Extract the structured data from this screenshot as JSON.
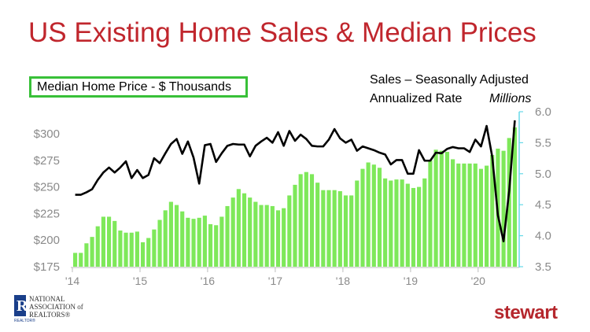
{
  "title": "US Existing Home Sales & Median Prices",
  "legend": {
    "price_label": "Median Home Price - $ Thousands",
    "sales_label_line1": "Sales – Seasonally Adjusted",
    "sales_label_line2": "Annualized Rate",
    "sales_units": "Millions"
  },
  "branding": {
    "nar_line1": "NATIONAL",
    "nar_line2": "ASSOCIATION of",
    "nar_line3": "REALTORS®",
    "nar_small": "REALTOR®",
    "stewart": "stewart"
  },
  "colors": {
    "title": "#c0262d",
    "bars": "#7ee85a",
    "line": "#000000",
    "axis_right": "#66d9e8",
    "legend_border": "#38c038",
    "stewart": "#b5272d"
  },
  "chart_data": {
    "type": "bar+line",
    "x_tick_labels": [
      "'14",
      "'15",
      "'16",
      "'17",
      "'18",
      "'19",
      "'20"
    ],
    "start": "2014-01",
    "end": "2020-07",
    "y_left": {
      "label": "Median Home Price - $ Thousands",
      "range": [
        175,
        310
      ],
      "ticks": [
        175,
        200,
        225,
        250,
        275,
        300
      ],
      "tick_labels": [
        "$175",
        "$200",
        "$225",
        "$250",
        "$275",
        "$300"
      ]
    },
    "y_right": {
      "label": "Sales – Seasonally Adjusted Annualized Rate Millions",
      "range": [
        3.5,
        6.0
      ],
      "ticks": [
        3.5,
        4.0,
        4.5,
        5.0,
        5.5,
        6.0
      ],
      "tick_labels": [
        "3.5",
        "4.0",
        "4.5",
        "5.0",
        "5.5",
        "6.0"
      ]
    },
    "series": [
      {
        "name": "Median Home Price - $ Thousands",
        "type": "bar",
        "axis": "left",
        "values": [
          188,
          188,
          197,
          203,
          213,
          222,
          222,
          218,
          209,
          207,
          207,
          208,
          198,
          202,
          210,
          219,
          228,
          236,
          233,
          227,
          221,
          220,
          221,
          223,
          215,
          214,
          222,
          232,
          240,
          248,
          244,
          240,
          236,
          233,
          233,
          232,
          228,
          230,
          242,
          252,
          262,
          264,
          262,
          254,
          247,
          247,
          247,
          246,
          242,
          242,
          256,
          267,
          273,
          271,
          268,
          258,
          256,
          257,
          257,
          253,
          249,
          250,
          258,
          275,
          285,
          284,
          283,
          276,
          272,
          272,
          272,
          272,
          267,
          270,
          280,
          286,
          284,
          296,
          306
        ]
      },
      {
        "name": "Sales – Seasonally Adjusted Annualized Rate",
        "type": "line",
        "axis": "right",
        "values": [
          4.66,
          4.66,
          4.7,
          4.75,
          4.9,
          5.02,
          5.1,
          5.02,
          5.1,
          5.2,
          4.93,
          5.06,
          4.93,
          4.98,
          5.25,
          5.17,
          5.33,
          5.48,
          5.56,
          5.32,
          5.52,
          5.26,
          4.84,
          5.46,
          5.48,
          5.19,
          5.33,
          5.45,
          5.48,
          5.47,
          5.47,
          5.28,
          5.45,
          5.52,
          5.58,
          5.5,
          5.67,
          5.45,
          5.69,
          5.53,
          5.63,
          5.56,
          5.45,
          5.44,
          5.44,
          5.55,
          5.72,
          5.57,
          5.5,
          5.55,
          5.37,
          5.44,
          5.41,
          5.38,
          5.34,
          5.31,
          5.15,
          5.22,
          5.22,
          5.0,
          5.0,
          5.38,
          5.21,
          5.21,
          5.34,
          5.33,
          5.4,
          5.43,
          5.41,
          5.41,
          5.35,
          5.55,
          5.44,
          5.77,
          5.27,
          4.33,
          3.91,
          4.72,
          5.86
        ]
      }
    ]
  }
}
